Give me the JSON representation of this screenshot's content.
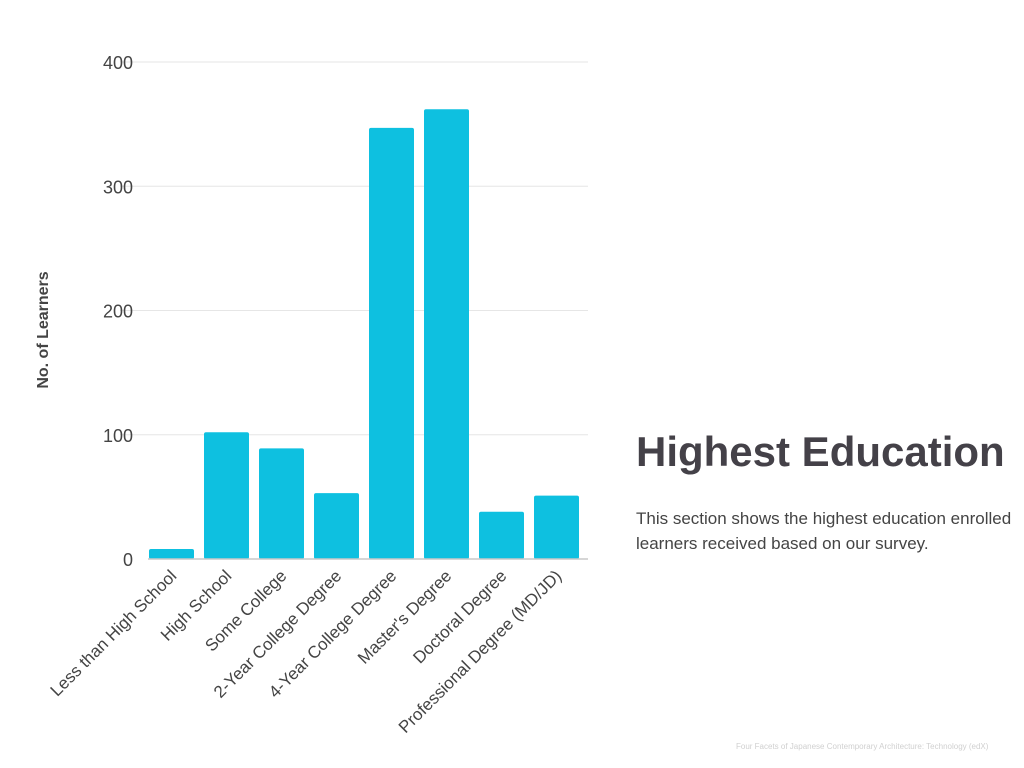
{
  "chart_data": {
    "type": "bar",
    "title": "",
    "xlabel": "",
    "ylabel": "No. of Learners",
    "categories": [
      "Less than High School",
      "High School",
      "Some College",
      "2-Year College Degree",
      "4-Year College Degree",
      "Master's Degree",
      "Doctoral Degree",
      "Professional Degree (MD/JD)"
    ],
    "values": [
      8,
      102,
      89,
      53,
      347,
      362,
      38,
      51
    ],
    "ylim": [
      0,
      400
    ],
    "yticks": [
      0,
      100,
      200,
      300,
      400
    ],
    "grid": true,
    "bar_color": "#0ec0e0"
  },
  "section": {
    "title": "Highest Education",
    "description": "This section shows the highest education enrolled learners received based on our survey."
  },
  "footer": "Four Facets of Japanese Contemporary Architecture: Technology (edX)"
}
